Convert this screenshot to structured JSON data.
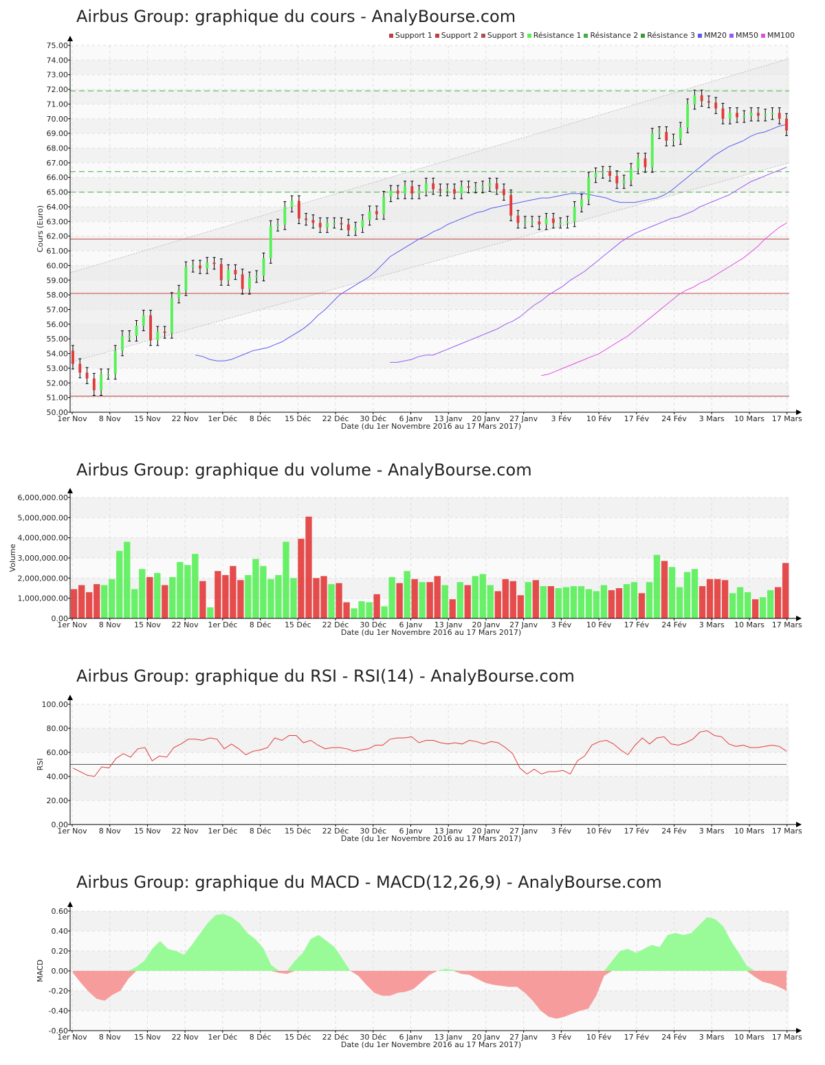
{
  "x_axis": {
    "ticks": [
      "1er Nov",
      "8 Nov",
      "15 Nov",
      "22 Nov",
      "1er Déc",
      "8 Déc",
      "15 Déc",
      "22 Déc",
      "30 Déc",
      "6 Janv",
      "13 Janv",
      "20 Janv",
      "27 Janv",
      "3 Fév",
      "10 Fév",
      "17 Fév",
      "24 Fév",
      "3 Mars",
      "10 Mars",
      "17 Mars"
    ],
    "label": "Date (du 1er Novembre 2016 au 17 Mars 2017)"
  },
  "colors": {
    "up": "#58f058",
    "down": "#e23a3a",
    "support": "#c04040",
    "resistance": "#40b040",
    "mm20": "#5b5bf0",
    "mm50": "#9a5bf0",
    "mm100": "#e050e0",
    "rsi": "#e23a3a",
    "macd_pos": "#98fb98",
    "macd_neg": "#f79c9c"
  },
  "chart_data": [
    {
      "id": "price",
      "type": "candlestick",
      "title": "Airbus Group: graphique du cours - AnalyBourse.com",
      "ylabel": "Cours (Euro)",
      "ylim": [
        50,
        75
      ],
      "y_ticks": [
        "50.00",
        "51.00",
        "52.00",
        "53.00",
        "54.00",
        "55.00",
        "56.00",
        "57.00",
        "58.00",
        "59.00",
        "60.00",
        "61.00",
        "62.00",
        "63.00",
        "64.00",
        "65.00",
        "66.00",
        "67.00",
        "68.00",
        "69.00",
        "70.00",
        "71.00",
        "72.00",
        "73.00",
        "74.00",
        "75.00"
      ],
      "legend": [
        "Support 1",
        "Support 2",
        "Support 3",
        "Résistance 1",
        "Résistance 2",
        "Résistance 3",
        "MM20",
        "MM50",
        "MM100"
      ],
      "levels": {
        "support": [
          51.1,
          58.1,
          61.8
        ],
        "resistance": [
          65.0,
          66.4,
          71.9
        ]
      },
      "close": [
        53.3,
        52.7,
        52.3,
        51.5,
        52.6,
        52.6,
        54.2,
        55.2,
        55.2,
        55.9,
        56.6,
        54.9,
        55.5,
        55.4,
        57.8,
        58.3,
        59.9,
        60.0,
        59.8,
        60.2,
        60.1,
        59.0,
        59.7,
        59.4,
        58.4,
        59.2,
        59.3,
        60.5,
        62.7,
        62.8,
        64.0,
        64.4,
        63.2,
        63.1,
        62.9,
        62.6,
        62.9,
        62.9,
        62.8,
        62.4,
        62.6,
        63.1,
        63.7,
        63.5,
        64.7,
        65.1,
        64.9,
        65.4,
        64.9,
        65.1,
        65.6,
        65.2,
        65.1,
        65.2,
        64.9,
        65.4,
        65.3,
        65.3,
        65.4,
        65.6,
        65.2,
        64.8,
        63.4,
        62.9,
        63.0,
        63.0,
        62.8,
        63.2,
        62.9,
        62.9,
        63.0,
        64.0,
        64.5,
        66.0,
        66.3,
        66.4,
        66.1,
        65.6,
        65.8,
        66.6,
        67.3,
        66.7,
        69.0,
        69.1,
        68.5,
        68.6,
        69.4,
        71.0,
        71.6,
        71.2,
        71.1,
        70.7,
        70.0,
        70.4,
        70.1,
        70.2,
        70.4,
        70.2,
        70.3,
        70.4,
        70.0,
        69.2
      ],
      "mm20": [
        53.9,
        53.8,
        53.6,
        53.5,
        53.5,
        53.6,
        53.8,
        54.0,
        54.2,
        54.3,
        54.4,
        54.6,
        54.8,
        55.1,
        55.4,
        55.7,
        56.1,
        56.6,
        57.0,
        57.5,
        58.0,
        58.3,
        58.6,
        58.9,
        59.2,
        59.6,
        60.1,
        60.6,
        60.9,
        61.2,
        61.5,
        61.8,
        62.0,
        62.3,
        62.5,
        62.8,
        63.0,
        63.2,
        63.4,
        63.6,
        63.7,
        63.9,
        64.0,
        64.1,
        64.2,
        64.3,
        64.4,
        64.5,
        64.6,
        64.6,
        64.7,
        64.8,
        64.9,
        64.9,
        64.9,
        64.8,
        64.7,
        64.6,
        64.4,
        64.3,
        64.3,
        64.3,
        64.4,
        64.5,
        64.6,
        64.8,
        65.1,
        65.5,
        65.9,
        66.3,
        66.7,
        67.1,
        67.5,
        67.8,
        68.1,
        68.3,
        68.5,
        68.8,
        69.0,
        69.1,
        69.3,
        69.5,
        69.6
      ],
      "mm50": [
        53.4,
        53.4,
        53.5,
        53.6,
        53.8,
        53.9,
        53.9,
        54.1,
        54.3,
        54.5,
        54.7,
        54.9,
        55.1,
        55.3,
        55.5,
        55.7,
        56.0,
        56.2,
        56.5,
        56.9,
        57.3,
        57.6,
        58.0,
        58.3,
        58.6,
        59.0,
        59.3,
        59.6,
        60.0,
        60.4,
        60.8,
        61.2,
        61.6,
        61.9,
        62.2,
        62.4,
        62.6,
        62.8,
        63.0,
        63.2,
        63.3,
        63.5,
        63.7,
        64.0,
        64.2,
        64.4,
        64.6,
        64.8,
        65.1,
        65.4,
        65.7,
        65.9,
        66.1,
        66.3,
        66.5,
        66.7
      ],
      "mm100": [
        52.5,
        52.6,
        52.8,
        53.0,
        53.2,
        53.4,
        53.6,
        53.8,
        54.0,
        54.3,
        54.6,
        54.9,
        55.2,
        55.6,
        56.0,
        56.4,
        56.8,
        57.2,
        57.6,
        58.0,
        58.3,
        58.5,
        58.8,
        59.0,
        59.3,
        59.6,
        59.9,
        60.2,
        60.5,
        60.9,
        61.3,
        61.8,
        62.2,
        62.6,
        62.9
      ]
    },
    {
      "id": "volume",
      "type": "bar",
      "title": "Airbus Group: graphique du volume - AnalyBourse.com",
      "ylabel": "Volume",
      "ylim": [
        0,
        6000000
      ],
      "y_ticks": [
        "0.00",
        "1,000,000.00",
        "2,000,000.00",
        "3,000,000.00",
        "4,000,000.00",
        "5,000,000.00",
        "6,000,000.00"
      ],
      "values": [
        1450000,
        1650000,
        1300000,
        1700000,
        1650000,
        1950000,
        3350000,
        3800000,
        1450000,
        2450000,
        2050000,
        2250000,
        1650000,
        2050000,
        2800000,
        2650000,
        3200000,
        1850000,
        550000,
        2350000,
        2150000,
        2600000,
        1900000,
        2150000,
        2950000,
        2600000,
        1950000,
        2150000,
        3800000,
        2000000,
        3950000,
        5050000,
        2000000,
        2100000,
        1700000,
        1750000,
        800000,
        500000,
        850000,
        800000,
        1200000,
        600000,
        2050000,
        1750000,
        2350000,
        1950000,
        1800000,
        1800000,
        2100000,
        1650000,
        950000,
        1800000,
        1650000,
        2100000,
        2200000,
        1650000,
        1350000,
        1950000,
        1850000,
        1150000,
        1800000,
        1900000,
        1600000,
        1600000,
        1500000,
        1550000,
        1600000,
        1600000,
        1450000,
        1350000,
        1650000,
        1400000,
        1500000,
        1700000,
        1800000,
        1250000,
        1800000,
        3150000,
        2850000,
        2550000,
        1550000,
        2300000,
        2450000,
        1600000,
        1950000,
        1950000,
        1900000,
        1250000,
        1550000,
        1300000,
        950000,
        1050000,
        1400000,
        1550000,
        2750000
      ]
    },
    {
      "id": "rsi",
      "type": "line",
      "title": "Airbus Group: graphique du RSI - RSI(14) - AnalyBourse.com",
      "ylabel": "RSI",
      "ylim": [
        0,
        100
      ],
      "y_ticks": [
        "0.00",
        "20.00",
        "40.00",
        "60.00",
        "80.00",
        "100.00"
      ],
      "reference": 50,
      "values": [
        47,
        44,
        41,
        40,
        48,
        47,
        55,
        59,
        56,
        63,
        64,
        53,
        57,
        56,
        64,
        67,
        71,
        71,
        70,
        72,
        71,
        63,
        67,
        63,
        58,
        61,
        62,
        64,
        72,
        70,
        74,
        74,
        68,
        70,
        66,
        63,
        64,
        64,
        63,
        61,
        62,
        63,
        66,
        66,
        71,
        72,
        72,
        73,
        68,
        70,
        70,
        68,
        67,
        68,
        67,
        70,
        69,
        67,
        69,
        68,
        64,
        59,
        47,
        42,
        46,
        42,
        44,
        44,
        45,
        42,
        53,
        57,
        66,
        69,
        70,
        67,
        62,
        58,
        66,
        72,
        67,
        72,
        73,
        67,
        66,
        68,
        71,
        77,
        78,
        74,
        73,
        67,
        65,
        66,
        64,
        64,
        65,
        66,
        65,
        61
      ]
    },
    {
      "id": "macd",
      "type": "area",
      "title": "Airbus Group: graphique du MACD - MACD(12,26,9) - AnalyBourse.com",
      "ylabel": "MACD",
      "ylim": [
        -0.6,
        0.6
      ],
      "y_ticks": [
        "-0.60",
        "-0.40",
        "-0.20",
        "0.00",
        "0.20",
        "0.40",
        "0.60"
      ],
      "values": [
        -0.02,
        -0.12,
        -0.21,
        -0.28,
        -0.3,
        -0.24,
        -0.2,
        -0.08,
        0.04,
        0.1,
        0.22,
        0.3,
        0.22,
        0.2,
        0.16,
        0.26,
        0.37,
        0.48,
        0.56,
        0.57,
        0.54,
        0.48,
        0.38,
        0.32,
        0.23,
        0.06,
        -0.02,
        -0.03,
        0.1,
        0.18,
        0.32,
        0.36,
        0.3,
        0.24,
        0.12,
        0.0,
        -0.05,
        -0.14,
        -0.22,
        -0.25,
        -0.25,
        -0.22,
        -0.21,
        -0.18,
        -0.11,
        -0.04,
        0.0,
        0.02,
        0.01,
        -0.03,
        -0.04,
        -0.08,
        -0.12,
        -0.14,
        -0.15,
        -0.16,
        -0.16,
        -0.22,
        -0.3,
        -0.4,
        -0.46,
        -0.48,
        -0.46,
        -0.43,
        -0.4,
        -0.38,
        -0.25,
        -0.05,
        0.1,
        0.2,
        0.22,
        0.18,
        0.22,
        0.26,
        0.24,
        0.36,
        0.38,
        0.36,
        0.38,
        0.46,
        0.54,
        0.52,
        0.45,
        0.3,
        0.18,
        0.05,
        -0.06,
        -0.11,
        -0.13,
        -0.16,
        -0.2
      ]
    }
  ]
}
